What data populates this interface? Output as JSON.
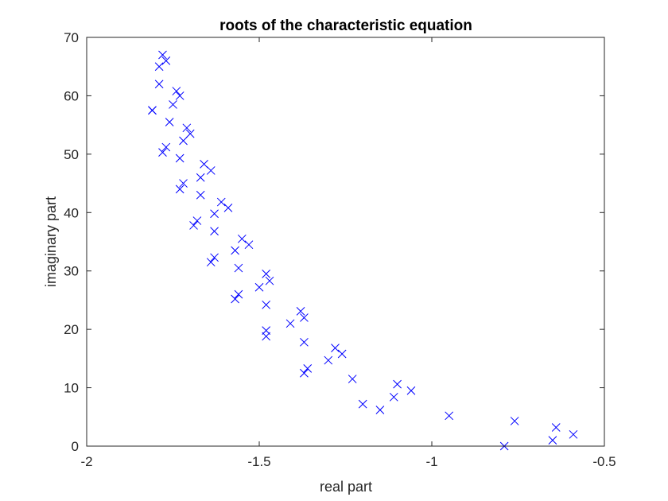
{
  "chart_data": {
    "type": "scatter",
    "title": "roots of the characteristic equation",
    "xlabel": "real part",
    "ylabel": "imaginary part",
    "xlim": [
      -2,
      -0.5
    ],
    "ylim": [
      0,
      70
    ],
    "xticks": [
      -2,
      -1.5,
      -1,
      -0.5
    ],
    "xtick_labels": [
      "-2",
      "-1.5",
      "-1",
      "-0.5"
    ],
    "yticks": [
      0,
      10,
      20,
      30,
      40,
      50,
      60,
      70
    ],
    "ytick_labels": [
      "0",
      "10",
      "20",
      "30",
      "40",
      "50",
      "60",
      "70"
    ],
    "grid": false,
    "marker": "x",
    "marker_color": "#0000ff",
    "series": [
      {
        "x": [
          -1.78,
          -1.77,
          -1.79,
          -1.79,
          -1.81,
          -1.74,
          -1.73,
          -1.75,
          -1.81,
          -1.76,
          -1.71,
          -1.7,
          -1.72,
          -1.77,
          -1.78,
          -1.73,
          -1.66,
          -1.64,
          -1.67,
          -1.72,
          -1.73,
          -1.67,
          -1.61,
          -1.59,
          -1.63,
          -1.68,
          -1.69,
          -1.63,
          -1.55,
          -1.53,
          -1.57,
          -1.63,
          -1.64,
          -1.56,
          -1.48,
          -1.47,
          -1.5,
          -1.56,
          -1.57,
          -1.48,
          -1.38,
          -1.37,
          -1.41,
          -1.48,
          -1.48,
          -1.37,
          -1.28,
          -1.26,
          -1.3,
          -1.36,
          -1.37,
          -1.23,
          -1.1,
          -1.06,
          -1.11,
          -1.2,
          -1.15,
          -0.95,
          -0.76,
          -0.64,
          -0.59,
          -0.65,
          -0.79
        ],
        "y": [
          67.0,
          66.0,
          65.0,
          62.0,
          57.5,
          60.8,
          60.0,
          58.5,
          57.5,
          55.5,
          54.5,
          53.5,
          52.3,
          51.2,
          50.3,
          49.3,
          48.3,
          47.2,
          46.0,
          45.0,
          44.0,
          43.0,
          41.8,
          40.8,
          39.8,
          38.6,
          37.8,
          36.8,
          35.5,
          34.5,
          33.5,
          32.3,
          31.5,
          30.5,
          29.5,
          28.3,
          27.2,
          26.0,
          25.2,
          24.2,
          23.1,
          22.0,
          21.0,
          19.8,
          18.8,
          17.8,
          16.8,
          15.8,
          14.7,
          13.3,
          12.5,
          11.5,
          10.6,
          9.5,
          8.4,
          7.2,
          6.2,
          5.2,
          4.3,
          3.2,
          2.0,
          1.0,
          0.0
        ]
      }
    ]
  }
}
